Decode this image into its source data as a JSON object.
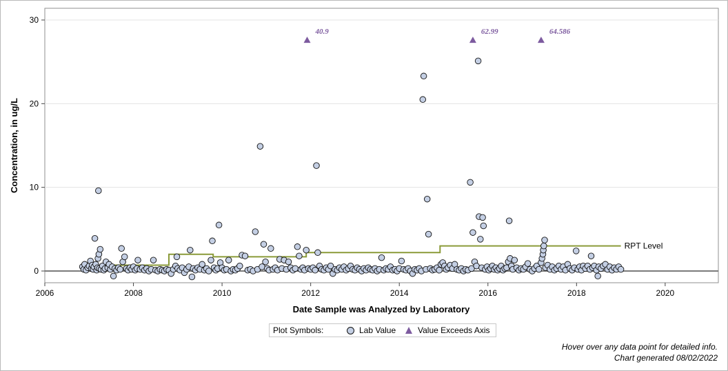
{
  "chart_data": {
    "type": "scatter",
    "title": "",
    "xlabel": "Date Sample was Analyzed by Laboratory",
    "ylabel": "Concentration, in ug/L",
    "xlim": [
      2006.0,
      2021.2
    ],
    "ylim": [
      -1.4,
      31.4
    ],
    "x_ticks": [
      2006,
      2008,
      2010,
      2012,
      2014,
      2016,
      2018,
      2020
    ],
    "y_ticks": [
      0,
      10,
      20,
      30
    ],
    "grid": "horizontal",
    "axis_max_plotted": 27.6,
    "series": [
      {
        "name": "Lab Value",
        "marker": "circle",
        "color": "#c4cfe4",
        "points": [
          [
            2006.85,
            0.5
          ],
          [
            2006.88,
            0.2
          ],
          [
            2006.9,
            0.8
          ],
          [
            2006.93,
            0.1
          ],
          [
            2006.97,
            0.4
          ],
          [
            2007.0,
            0.6
          ],
          [
            2007.03,
            1.2
          ],
          [
            2007.05,
            0.3
          ],
          [
            2007.07,
            0.7
          ],
          [
            2007.09,
            0.2
          ],
          [
            2007.11,
            0.5
          ],
          [
            2007.13,
            3.9
          ],
          [
            2007.15,
            0.8
          ],
          [
            2007.17,
            0.1
          ],
          [
            2007.19,
            0.4
          ],
          [
            2007.2,
            1.5
          ],
          [
            2007.21,
            9.6
          ],
          [
            2007.22,
            2.0
          ],
          [
            2007.23,
            0.3
          ],
          [
            2007.25,
            2.6
          ],
          [
            2007.27,
            0.2
          ],
          [
            2007.3,
            0.6
          ],
          [
            2007.33,
            0.1
          ],
          [
            2007.36,
            0.3
          ],
          [
            2007.38,
            1.1
          ],
          [
            2007.42,
            0.4
          ],
          [
            2007.45,
            0.8
          ],
          [
            2007.48,
            0.2
          ],
          [
            2007.52,
            0.5
          ],
          [
            2007.55,
            -0.6
          ],
          [
            2007.58,
            0.3
          ],
          [
            2007.62,
            0.1
          ],
          [
            2007.66,
            0.4
          ],
          [
            2007.7,
            0.2
          ],
          [
            2007.73,
            2.7
          ],
          [
            2007.76,
            1.1
          ],
          [
            2007.8,
            1.7
          ],
          [
            2007.84,
            0.3
          ],
          [
            2007.88,
            0.1
          ],
          [
            2007.92,
            0.4
          ],
          [
            2007.96,
            0.2
          ],
          [
            2008.0,
            0.5
          ],
          [
            2008.04,
            0.1
          ],
          [
            2008.08,
            0.3
          ],
          [
            2008.1,
            1.3
          ],
          [
            2008.15,
            0.2
          ],
          [
            2008.2,
            0.4
          ],
          [
            2008.25,
            0.1
          ],
          [
            2008.3,
            0.3
          ],
          [
            2008.35,
            0.0
          ],
          [
            2008.4,
            0.2
          ],
          [
            2008.45,
            1.3
          ],
          [
            2008.5,
            0.1
          ],
          [
            2008.55,
            0.0
          ],
          [
            2008.6,
            0.2
          ],
          [
            2008.65,
            0.1
          ],
          [
            2008.7,
            0.0
          ],
          [
            2008.75,
            0.2
          ],
          [
            2008.8,
            0.1
          ],
          [
            2008.85,
            -0.3
          ],
          [
            2008.9,
            0.2
          ],
          [
            2008.95,
            0.6
          ],
          [
            2008.98,
            1.7
          ],
          [
            2009.0,
            0.3
          ],
          [
            2009.05,
            0.1
          ],
          [
            2009.1,
            0.4
          ],
          [
            2009.15,
            -0.2
          ],
          [
            2009.2,
            0.2
          ],
          [
            2009.25,
            0.5
          ],
          [
            2009.28,
            2.5
          ],
          [
            2009.32,
            -0.7
          ],
          [
            2009.35,
            0.3
          ],
          [
            2009.4,
            0.1
          ],
          [
            2009.45,
            0.4
          ],
          [
            2009.5,
            0.2
          ],
          [
            2009.55,
            0.8
          ],
          [
            2009.6,
            0.1
          ],
          [
            2009.65,
            0.3
          ],
          [
            2009.7,
            0.0
          ],
          [
            2009.75,
            1.3
          ],
          [
            2009.78,
            3.6
          ],
          [
            2009.82,
            0.4
          ],
          [
            2009.86,
            0.1
          ],
          [
            2009.9,
            0.3
          ],
          [
            2009.93,
            5.5
          ],
          [
            2009.96,
            1.0
          ],
          [
            2010.0,
            0.4
          ],
          [
            2010.05,
            0.1
          ],
          [
            2010.1,
            0.2
          ],
          [
            2010.15,
            1.3
          ],
          [
            2010.2,
            0.0
          ],
          [
            2010.25,
            0.2
          ],
          [
            2010.3,
            0.1
          ],
          [
            2010.35,
            0.3
          ],
          [
            2010.4,
            0.6
          ],
          [
            2010.45,
            1.9
          ],
          [
            2010.52,
            1.8
          ],
          [
            2010.58,
            0.1
          ],
          [
            2010.64,
            0.2
          ],
          [
            2010.7,
            0.0
          ],
          [
            2010.75,
            4.7
          ],
          [
            2010.8,
            0.2
          ],
          [
            2010.86,
            14.9
          ],
          [
            2010.9,
            0.5
          ],
          [
            2010.94,
            3.2
          ],
          [
            2010.98,
            1.1
          ],
          [
            2011.02,
            0.3
          ],
          [
            2011.06,
            0.1
          ],
          [
            2011.1,
            2.7
          ],
          [
            2011.15,
            0.2
          ],
          [
            2011.2,
            0.4
          ],
          [
            2011.25,
            0.1
          ],
          [
            2011.3,
            1.4
          ],
          [
            2011.35,
            0.3
          ],
          [
            2011.4,
            1.3
          ],
          [
            2011.45,
            0.2
          ],
          [
            2011.5,
            1.1
          ],
          [
            2011.55,
            0.4
          ],
          [
            2011.6,
            0.1
          ],
          [
            2011.65,
            0.3
          ],
          [
            2011.7,
            2.9
          ],
          [
            2011.74,
            1.8
          ],
          [
            2011.78,
            0.2
          ],
          [
            2011.82,
            0.4
          ],
          [
            2011.86,
            0.1
          ],
          [
            2011.9,
            2.5
          ],
          [
            2011.95,
            0.3
          ],
          [
            2012.0,
            0.2
          ],
          [
            2012.05,
            0.4
          ],
          [
            2012.1,
            0.1
          ],
          [
            2012.13,
            12.6
          ],
          [
            2012.16,
            2.2
          ],
          [
            2012.2,
            0.6
          ],
          [
            2012.25,
            0.2
          ],
          [
            2012.3,
            0.1
          ],
          [
            2012.35,
            0.4
          ],
          [
            2012.4,
            0.2
          ],
          [
            2012.45,
            0.6
          ],
          [
            2012.5,
            -0.3
          ],
          [
            2012.55,
            0.2
          ],
          [
            2012.6,
            0.1
          ],
          [
            2012.65,
            0.4
          ],
          [
            2012.7,
            0.2
          ],
          [
            2012.75,
            0.5
          ],
          [
            2012.8,
            0.1
          ],
          [
            2012.85,
            0.3
          ],
          [
            2012.9,
            0.6
          ],
          [
            2012.95,
            0.2
          ],
          [
            2013.0,
            0.1
          ],
          [
            2013.05,
            0.4
          ],
          [
            2013.1,
            0.2
          ],
          [
            2013.15,
            0.0
          ],
          [
            2013.2,
            0.3
          ],
          [
            2013.25,
            0.1
          ],
          [
            2013.3,
            0.4
          ],
          [
            2013.35,
            0.2
          ],
          [
            2013.4,
            0.1
          ],
          [
            2013.45,
            0.3
          ],
          [
            2013.5,
            0.0
          ],
          [
            2013.55,
            0.2
          ],
          [
            2013.6,
            1.6
          ],
          [
            2013.65,
            0.1
          ],
          [
            2013.7,
            0.3
          ],
          [
            2013.75,
            0.2
          ],
          [
            2013.8,
            0.5
          ],
          [
            2013.85,
            0.1
          ],
          [
            2013.9,
            0.2
          ],
          [
            2013.95,
            0.0
          ],
          [
            2014.0,
            0.3
          ],
          [
            2014.05,
            1.2
          ],
          [
            2014.1,
            0.2
          ],
          [
            2014.15,
            0.1
          ],
          [
            2014.2,
            0.3
          ],
          [
            2014.25,
            0.0
          ],
          [
            2014.3,
            -0.3
          ],
          [
            2014.35,
            0.2
          ],
          [
            2014.4,
            0.1
          ],
          [
            2014.45,
            0.3
          ],
          [
            2014.5,
            0.0
          ],
          [
            2014.53,
            20.5
          ],
          [
            2014.55,
            23.3
          ],
          [
            2014.6,
            0.2
          ],
          [
            2014.63,
            8.6
          ],
          [
            2014.66,
            4.4
          ],
          [
            2014.7,
            0.3
          ],
          [
            2014.75,
            0.1
          ],
          [
            2014.8,
            0.2
          ],
          [
            2014.85,
            0.4
          ],
          [
            2014.9,
            0.1
          ],
          [
            2014.94,
            0.8
          ],
          [
            2014.98,
            1.0
          ],
          [
            2015.02,
            0.6
          ],
          [
            2015.06,
            0.2
          ],
          [
            2015.1,
            0.4
          ],
          [
            2015.15,
            0.7
          ],
          [
            2015.2,
            0.3
          ],
          [
            2015.25,
            0.8
          ],
          [
            2015.3,
            0.2
          ],
          [
            2015.35,
            0.1
          ],
          [
            2015.4,
            0.3
          ],
          [
            2015.45,
            0.0
          ],
          [
            2015.5,
            0.2
          ],
          [
            2015.55,
            0.1
          ],
          [
            2015.6,
            10.6
          ],
          [
            2015.63,
            0.3
          ],
          [
            2015.66,
            4.6
          ],
          [
            2015.7,
            1.1
          ],
          [
            2015.74,
            0.6
          ],
          [
            2015.78,
            25.1
          ],
          [
            2015.8,
            6.5
          ],
          [
            2015.83,
            3.8
          ],
          [
            2015.86,
            0.4
          ],
          [
            2015.88,
            6.4
          ],
          [
            2015.9,
            5.4
          ],
          [
            2015.94,
            0.2
          ],
          [
            2015.98,
            0.5
          ],
          [
            2016.02,
            0.1
          ],
          [
            2016.06,
            0.3
          ],
          [
            2016.1,
            0.6
          ],
          [
            2016.14,
            0.2
          ],
          [
            2016.18,
            0.4
          ],
          [
            2016.22,
            0.1
          ],
          [
            2016.26,
            0.3
          ],
          [
            2016.3,
            0.6
          ],
          [
            2016.34,
            0.1
          ],
          [
            2016.38,
            0.3
          ],
          [
            2016.42,
            0.4
          ],
          [
            2016.46,
            1.1
          ],
          [
            2016.48,
            6.0
          ],
          [
            2016.5,
            1.5
          ],
          [
            2016.53,
            0.6
          ],
          [
            2016.56,
            0.2
          ],
          [
            2016.6,
            1.3
          ],
          [
            2016.65,
            0.4
          ],
          [
            2016.7,
            0.1
          ],
          [
            2016.75,
            0.3
          ],
          [
            2016.8,
            0.2
          ],
          [
            2016.85,
            0.5
          ],
          [
            2016.9,
            0.9
          ],
          [
            2016.95,
            0.2
          ],
          [
            2017.0,
            0.0
          ],
          [
            2017.05,
            0.3
          ],
          [
            2017.1,
            0.6
          ],
          [
            2017.15,
            0.2
          ],
          [
            2017.2,
            1.0
          ],
          [
            2017.22,
            1.5
          ],
          [
            2017.24,
            2.0
          ],
          [
            2017.25,
            2.5
          ],
          [
            2017.26,
            3.0
          ],
          [
            2017.28,
            3.7
          ],
          [
            2017.3,
            0.4
          ],
          [
            2017.35,
            0.7
          ],
          [
            2017.4,
            0.2
          ],
          [
            2017.45,
            0.5
          ],
          [
            2017.5,
            0.1
          ],
          [
            2017.55,
            0.3
          ],
          [
            2017.6,
            0.6
          ],
          [
            2017.65,
            0.2
          ],
          [
            2017.7,
            0.5
          ],
          [
            2017.75,
            0.1
          ],
          [
            2017.8,
            0.8
          ],
          [
            2017.85,
            0.3
          ],
          [
            2017.9,
            0.1
          ],
          [
            2017.95,
            0.4
          ],
          [
            2017.99,
            2.4
          ],
          [
            2018.03,
            0.2
          ],
          [
            2018.07,
            0.5
          ],
          [
            2018.11,
            0.1
          ],
          [
            2018.15,
            0.6
          ],
          [
            2018.2,
            0.3
          ],
          [
            2018.25,
            0.6
          ],
          [
            2018.3,
            0.2
          ],
          [
            2018.33,
            1.8
          ],
          [
            2018.36,
            0.4
          ],
          [
            2018.4,
            0.6
          ],
          [
            2018.45,
            0.1
          ],
          [
            2018.48,
            -0.6
          ],
          [
            2018.5,
            0.5
          ],
          [
            2018.55,
            0.3
          ],
          [
            2018.6,
            0.6
          ],
          [
            2018.65,
            0.8
          ],
          [
            2018.7,
            0.2
          ],
          [
            2018.75,
            0.5
          ],
          [
            2018.8,
            0.1
          ],
          [
            2018.85,
            0.4
          ],
          [
            2018.9,
            0.2
          ],
          [
            2018.95,
            0.5
          ],
          [
            2019.0,
            0.2
          ]
        ]
      },
      {
        "name": "Value Exceeds Axis",
        "marker": "triangle",
        "color": "#7d5b9f",
        "points": [
          [
            2011.92,
            27.6,
            "40.9"
          ],
          [
            2015.66,
            27.6,
            "62.99"
          ],
          [
            2017.2,
            27.6,
            "64.586"
          ]
        ]
      },
      {
        "name": "RPT Level",
        "type": "step",
        "color": "#8a9a38",
        "points": [
          [
            2006.85,
            0.5
          ],
          [
            2007.3,
            0.5
          ],
          [
            2007.3,
            0.7
          ],
          [
            2008.8,
            0.7
          ],
          [
            2008.8,
            2.0
          ],
          [
            2009.8,
            2.0
          ],
          [
            2009.8,
            1.7
          ],
          [
            2011.9,
            1.7
          ],
          [
            2011.9,
            2.2
          ],
          [
            2014.92,
            2.2
          ],
          [
            2014.92,
            3.0
          ],
          [
            2019.0,
            3.0
          ]
        ]
      }
    ]
  },
  "legend": {
    "title": "Plot Symbols:",
    "circle_label": "Lab Value",
    "triangle_label": "Value Exceeds Axis"
  },
  "notes": {
    "hover": "Hover over any data point for detailed info.",
    "generated": "Chart generated 08/02/2022"
  }
}
